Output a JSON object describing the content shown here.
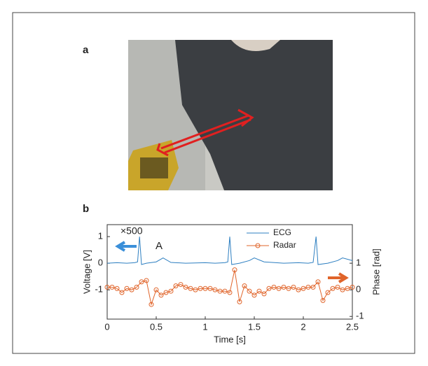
{
  "photo_panel": {
    "label": "a"
  },
  "chart_data": {
    "type": "line",
    "panel_label": "b",
    "xlabel": "Time [s]",
    "ylabel": "Voltage [V]",
    "y2label": "Phase [rad]",
    "xlim": [
      0,
      2.5
    ],
    "xticks": [
      0,
      0.5,
      1,
      1.5,
      2,
      2.5
    ],
    "ylim": [
      -2.1,
      1.45
    ],
    "yticks": [
      -1,
      0,
      1
    ],
    "y2lim": [
      -1.1,
      2.45
    ],
    "y2ticks": [
      -1,
      0,
      1
    ],
    "grid": false,
    "legend": "upper right",
    "annotations": [
      {
        "text": "×500",
        "color": "#3a8fd9"
      },
      {
        "text": "A",
        "color": "#000000"
      }
    ],
    "series": [
      {
        "name": "ECG",
        "color": "#2d7fc1",
        "marker": "none",
        "x": [
          0,
          0.1,
          0.2,
          0.28,
          0.31,
          0.33,
          0.35,
          0.4,
          0.5,
          0.57,
          0.65,
          0.8,
          1.0,
          1.1,
          1.2,
          1.23,
          1.25,
          1.27,
          1.35,
          1.45,
          1.5,
          1.6,
          1.8,
          1.95,
          2.05,
          2.1,
          2.13,
          2.15,
          2.25,
          2.35,
          2.4,
          2.5
        ],
        "values": [
          0,
          0.02,
          0,
          0.02,
          0.05,
          1.0,
          -0.05,
          0,
          0.05,
          0.2,
          0.03,
          0,
          0.02,
          0,
          0.02,
          0.05,
          1.0,
          -0.05,
          0,
          0.1,
          0.2,
          0.05,
          0,
          0.02,
          0,
          0.03,
          1.0,
          -0.05,
          0,
          0.1,
          0.2,
          0.1
        ]
      },
      {
        "name": "Radar",
        "color": "#e0642a",
        "marker": "circle",
        "axis": "y2",
        "x": [
          0,
          0.05,
          0.1,
          0.15,
          0.2,
          0.25,
          0.3,
          0.35,
          0.4,
          0.45,
          0.5,
          0.55,
          0.6,
          0.65,
          0.7,
          0.75,
          0.8,
          0.85,
          0.9,
          0.95,
          1.0,
          1.05,
          1.1,
          1.15,
          1.2,
          1.25,
          1.3,
          1.35,
          1.4,
          1.45,
          1.5,
          1.55,
          1.6,
          1.65,
          1.7,
          1.75,
          1.8,
          1.85,
          1.9,
          1.95,
          2.0,
          2.05,
          2.1,
          2.15,
          2.2,
          2.25,
          2.3,
          2.35,
          2.4,
          2.45,
          2.5
        ],
        "values": [
          0.1,
          0.1,
          0.05,
          -0.1,
          0.05,
          0.0,
          0.1,
          0.3,
          0.35,
          -0.55,
          0.0,
          -0.2,
          -0.1,
          -0.05,
          0.15,
          0.2,
          0.1,
          0.05,
          0.0,
          0.05,
          0.05,
          0.05,
          0.0,
          -0.05,
          -0.05,
          -0.1,
          0.75,
          -0.45,
          0.15,
          -0.05,
          -0.2,
          -0.05,
          -0.15,
          0.05,
          0.1,
          0.05,
          0.1,
          0.05,
          0.1,
          0.0,
          0.05,
          0.1,
          0.1,
          0.3,
          -0.4,
          -0.1,
          0.05,
          0.1,
          0.0,
          0.05,
          0.1
        ]
      }
    ]
  }
}
